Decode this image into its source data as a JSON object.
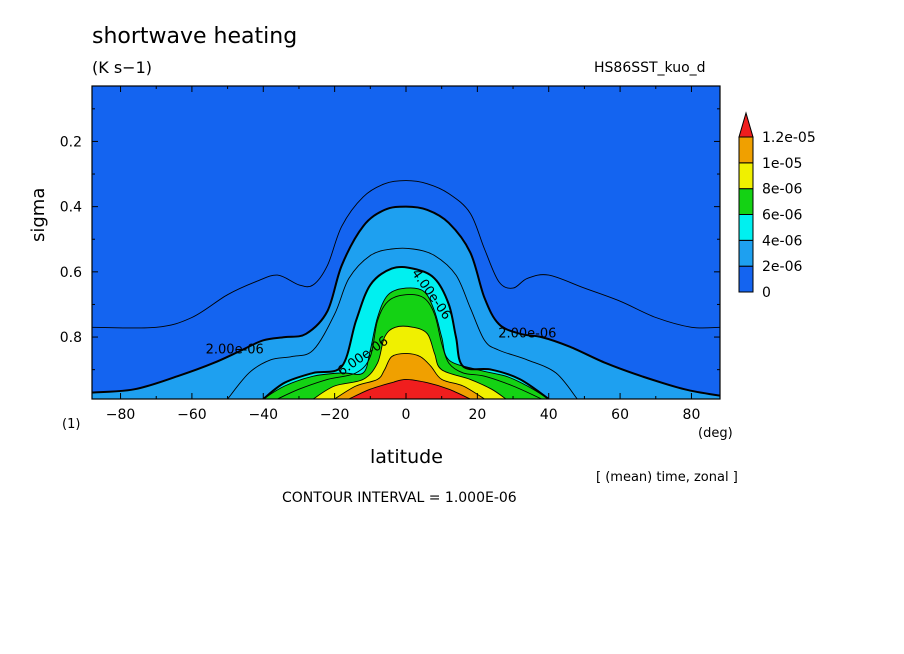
{
  "header": {
    "title": "shortwave heating",
    "units": "(K s−1)",
    "dataset": "HS86SST_kuo_d",
    "panel": "(1)",
    "subtitle": "[ (mean) time, zonal ]",
    "contour_interval": "CONTOUR INTERVAL = 1.000E-06"
  },
  "chart_data": {
    "type": "heatmap",
    "xlabel": "latitude",
    "xunit": "(deg)",
    "ylabel": "sigma",
    "xlim": [
      -88,
      88
    ],
    "ylim": [
      0.03,
      0.99
    ],
    "y_inverted": true,
    "x_ticks": [
      -80,
      -60,
      -40,
      -20,
      0,
      20,
      40,
      60,
      80
    ],
    "x_tick_labels": [
      "−80",
      "−60",
      "−40",
      "−20",
      "0",
      "20",
      "40",
      "60",
      "80"
    ],
    "y_ticks": [
      0.2,
      0.4,
      0.6,
      0.8
    ],
    "y_tick_labels": [
      "0.2",
      "0.4",
      "0.6",
      "0.8"
    ],
    "colorbar": {
      "levels": [
        0,
        2e-06,
        4e-06,
        6e-06,
        8e-06,
        1e-05,
        1.2e-05
      ],
      "labels": [
        "0",
        "2e-06",
        "4e-06",
        "6e-06",
        "8e-06",
        "1e-05",
        "1.2e-05"
      ],
      "colors": [
        "#1464f0",
        "#1ea0f0",
        "#00f0f0",
        "#14d214",
        "#f0f000",
        "#f0a000",
        "#f01e1e"
      ],
      "extend": "max"
    },
    "contour_labels": [
      {
        "text": "2.00e-06",
        "lat": -48,
        "sigma": 0.84
      },
      {
        "text": "2.00e-06",
        "lat": 34,
        "sigma": 0.79
      },
      {
        "text": "4.00e-06",
        "lat": 7,
        "sigma": 0.67
      },
      {
        "text": "6.00e-06",
        "lat": -12,
        "sigma": 0.86
      }
    ],
    "contours": [
      {
        "level": 1e-06,
        "points": [
          [
            -88,
            0.77
          ],
          [
            -70,
            0.77
          ],
          [
            -60,
            0.74
          ],
          [
            -50,
            0.67
          ],
          [
            -42,
            0.63
          ],
          [
            -36,
            0.61
          ],
          [
            -30,
            0.64
          ],
          [
            -26,
            0.64
          ],
          [
            -22,
            0.58
          ],
          [
            -18,
            0.46
          ],
          [
            -12,
            0.37
          ],
          [
            -6,
            0.33
          ],
          [
            0,
            0.32
          ],
          [
            6,
            0.33
          ],
          [
            12,
            0.36
          ],
          [
            18,
            0.42
          ],
          [
            22,
            0.53
          ],
          [
            26,
            0.63
          ],
          [
            30,
            0.65
          ],
          [
            34,
            0.62
          ],
          [
            40,
            0.61
          ],
          [
            50,
            0.65
          ],
          [
            60,
            0.69
          ],
          [
            70,
            0.74
          ],
          [
            80,
            0.77
          ],
          [
            88,
            0.77
          ]
        ]
      },
      {
        "level": 2e-06,
        "points": [
          [
            -88,
            0.97
          ],
          [
            -76,
            0.96
          ],
          [
            -64,
            0.92
          ],
          [
            -54,
            0.88
          ],
          [
            -46,
            0.84
          ],
          [
            -40,
            0.81
          ],
          [
            -34,
            0.8
          ],
          [
            -28,
            0.79
          ],
          [
            -22,
            0.72
          ],
          [
            -18,
            0.58
          ],
          [
            -12,
            0.46
          ],
          [
            -6,
            0.41
          ],
          [
            0,
            0.4
          ],
          [
            6,
            0.41
          ],
          [
            12,
            0.45
          ],
          [
            18,
            0.54
          ],
          [
            22,
            0.68
          ],
          [
            26,
            0.76
          ],
          [
            32,
            0.79
          ],
          [
            38,
            0.8
          ],
          [
            46,
            0.83
          ],
          [
            56,
            0.88
          ],
          [
            66,
            0.92
          ],
          [
            78,
            0.96
          ],
          [
            88,
            0.98
          ]
        ]
      },
      {
        "level": 3e-06,
        "points": [
          [
            -50,
            0.99
          ],
          [
            -44,
            0.91
          ],
          [
            -38,
            0.87
          ],
          [
            -32,
            0.86
          ],
          [
            -26,
            0.84
          ],
          [
            -20,
            0.73
          ],
          [
            -16,
            0.62
          ],
          [
            -10,
            0.55
          ],
          [
            -4,
            0.53
          ],
          [
            2,
            0.53
          ],
          [
            8,
            0.55
          ],
          [
            14,
            0.61
          ],
          [
            18,
            0.71
          ],
          [
            22,
            0.81
          ],
          [
            26,
            0.84
          ],
          [
            34,
            0.87
          ],
          [
            42,
            0.91
          ],
          [
            48,
            0.99
          ]
        ]
      },
      {
        "level": 4e-06,
        "points": [
          [
            -40,
            0.99
          ],
          [
            -34,
            0.94
          ],
          [
            -26,
            0.91
          ],
          [
            -18,
            0.89
          ],
          [
            -14,
            0.75
          ],
          [
            -10,
            0.64
          ],
          [
            -4,
            0.59
          ],
          [
            2,
            0.59
          ],
          [
            8,
            0.62
          ],
          [
            12,
            0.7
          ],
          [
            14,
            0.8
          ],
          [
            16,
            0.89
          ],
          [
            24,
            0.9
          ],
          [
            32,
            0.93
          ],
          [
            40,
            0.99
          ]
        ]
      },
      {
        "level": 5e-06,
        "points": [
          [
            -36,
            0.99
          ],
          [
            -30,
            0.96
          ],
          [
            -22,
            0.93
          ],
          [
            -14,
            0.91
          ],
          [
            -10,
            0.86
          ],
          [
            -8,
            0.75
          ],
          [
            -5,
            0.69
          ],
          [
            0,
            0.67
          ],
          [
            5,
            0.68
          ],
          [
            8,
            0.73
          ],
          [
            10,
            0.82
          ],
          [
            12,
            0.88
          ],
          [
            16,
            0.91
          ],
          [
            22,
            0.92
          ],
          [
            30,
            0.95
          ],
          [
            38,
            0.99
          ]
        ]
      }
    ],
    "contour_labels_text_levels": [
      "2.00e-06",
      "4.00e-06",
      "6.00e-06"
    ]
  }
}
